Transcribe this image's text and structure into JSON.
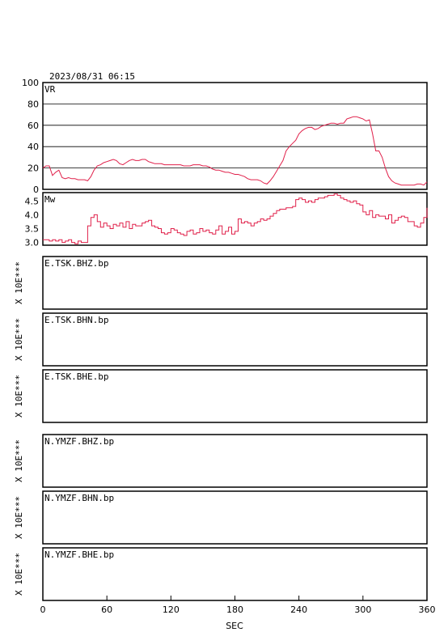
{
  "header": {
    "timestamp": "2023/08/31 06:15"
  },
  "chart_data": [
    {
      "type": "line",
      "panel_label": "VR",
      "ylim": [
        0,
        100
      ],
      "yticks": [
        "0",
        "20",
        "40",
        "60",
        "80",
        "100"
      ],
      "grid": true,
      "color": "#e0204a",
      "x": [
        0,
        3,
        6,
        9,
        12,
        15,
        18,
        21,
        24,
        27,
        30,
        33,
        36,
        39,
        42,
        45,
        48,
        51,
        54,
        57,
        60,
        63,
        66,
        69,
        72,
        75,
        78,
        81,
        84,
        87,
        90,
        93,
        96,
        99,
        102,
        105,
        108,
        111,
        114,
        117,
        120,
        123,
        126,
        129,
        132,
        135,
        138,
        141,
        144,
        147,
        150,
        153,
        156,
        159,
        162,
        165,
        168,
        171,
        174,
        177,
        180,
        183,
        186,
        189,
        192,
        195,
        198,
        201,
        204,
        207,
        210,
        213,
        216,
        219,
        222,
        225,
        228,
        231,
        234,
        237,
        240,
        243,
        246,
        249,
        252,
        255,
        258,
        261,
        264,
        267,
        270,
        273,
        276,
        279,
        282,
        285,
        288,
        291,
        294,
        297,
        300,
        303,
        306,
        309,
        312,
        315,
        318,
        321,
        324,
        327,
        330,
        333,
        336,
        339,
        342,
        345,
        348,
        351,
        354,
        357,
        360
      ],
      "values": [
        20,
        22,
        22,
        13,
        16,
        18,
        11,
        10,
        11,
        10,
        10,
        9,
        9,
        9,
        8,
        12,
        18,
        22,
        23,
        25,
        26,
        27,
        28,
        27,
        24,
        23,
        25,
        27,
        28,
        27,
        27,
        28,
        28,
        26,
        25,
        24,
        24,
        24,
        23,
        23,
        23,
        23,
        23,
        23,
        22,
        22,
        22,
        23,
        23,
        23,
        22,
        22,
        21,
        19,
        18,
        18,
        17,
        16,
        16,
        15,
        14,
        14,
        13,
        12,
        10,
        9,
        9,
        9,
        8,
        6,
        5,
        8,
        12,
        17,
        22,
        27,
        36,
        40,
        43,
        46,
        52,
        55,
        57,
        58,
        58,
        56,
        57,
        59,
        60,
        61,
        62,
        62,
        61,
        62,
        62,
        66,
        67,
        68,
        68,
        67,
        66,
        64,
        65,
        52,
        36,
        36,
        30,
        20,
        12,
        8,
        6,
        5,
        4,
        4,
        4,
        4,
        4,
        5,
        5,
        4,
        7
      ]
    },
    {
      "type": "line",
      "panel_label": "Mw",
      "ylim": [
        2.9,
        4.8
      ],
      "yticks": [
        "3.0",
        "3.5",
        "4.0",
        "4.5"
      ],
      "grid": false,
      "color": "#e0204a",
      "x": [
        0,
        3,
        6,
        9,
        12,
        15,
        18,
        21,
        24,
        27,
        30,
        33,
        36,
        39,
        42,
        45,
        48,
        51,
        54,
        57,
        60,
        63,
        66,
        69,
        72,
        75,
        78,
        81,
        84,
        87,
        90,
        93,
        96,
        99,
        102,
        105,
        108,
        111,
        114,
        117,
        120,
        123,
        126,
        129,
        132,
        135,
        138,
        141,
        144,
        147,
        150,
        153,
        156,
        159,
        162,
        165,
        168,
        171,
        174,
        177,
        180,
        183,
        186,
        189,
        192,
        195,
        198,
        201,
        204,
        207,
        210,
        213,
        216,
        219,
        222,
        225,
        228,
        231,
        234,
        237,
        240,
        243,
        246,
        249,
        252,
        255,
        258,
        261,
        264,
        267,
        270,
        273,
        276,
        279,
        282,
        285,
        288,
        291,
        294,
        297,
        300,
        303,
        306,
        309,
        312,
        315,
        318,
        321,
        324,
        327,
        330,
        333,
        336,
        339,
        342,
        345,
        348,
        351,
        354,
        357,
        360
      ],
      "values": [
        3.1,
        3.1,
        3.05,
        3.1,
        3.05,
        3.1,
        3.0,
        3.05,
        3.1,
        3.0,
        2.95,
        3.05,
        3.0,
        3.0,
        3.6,
        3.9,
        4.0,
        3.75,
        3.55,
        3.7,
        3.6,
        3.5,
        3.65,
        3.6,
        3.7,
        3.55,
        3.75,
        3.5,
        3.65,
        3.6,
        3.6,
        3.7,
        3.75,
        3.8,
        3.6,
        3.55,
        3.5,
        3.35,
        3.3,
        3.35,
        3.5,
        3.45,
        3.35,
        3.3,
        3.25,
        3.4,
        3.45,
        3.3,
        3.35,
        3.5,
        3.4,
        3.45,
        3.35,
        3.3,
        3.45,
        3.6,
        3.3,
        3.4,
        3.55,
        3.3,
        3.4,
        3.85,
        3.7,
        3.75,
        3.7,
        3.6,
        3.7,
        3.75,
        3.85,
        3.8,
        3.85,
        3.95,
        4.05,
        4.15,
        4.2,
        4.2,
        4.25,
        4.25,
        4.3,
        4.55,
        4.6,
        4.55,
        4.45,
        4.5,
        4.45,
        4.55,
        4.6,
        4.6,
        4.65,
        4.7,
        4.7,
        4.75,
        4.7,
        4.6,
        4.55,
        4.5,
        4.45,
        4.5,
        4.4,
        4.35,
        4.1,
        4.0,
        4.15,
        3.9,
        4.0,
        3.95,
        3.95,
        3.85,
        4.0,
        3.7,
        3.8,
        3.9,
        3.95,
        3.9,
        3.75,
        3.75,
        3.6,
        3.55,
        3.7,
        3.9,
        4.25
      ]
    }
  ],
  "traces": [
    {
      "label": "E.TSK.BHZ.bp",
      "yaxis_label": "X 10E***"
    },
    {
      "label": "E.TSK.BHN.bp",
      "yaxis_label": "X 10E***"
    },
    {
      "label": "E.TSK.BHE.bp",
      "yaxis_label": "X 10E***"
    },
    {
      "label": "N.YMZF.BHZ.bp",
      "yaxis_label": "X 10E***"
    },
    {
      "label": "N.YMZF.BHN.bp",
      "yaxis_label": "X 10E***"
    },
    {
      "label": "N.YMZF.BHE.bp",
      "yaxis_label": "X 10E***"
    }
  ],
  "xaxis": {
    "label": "SEC",
    "xlim": [
      0,
      360
    ],
    "ticks": [
      "0",
      "60",
      "120",
      "180",
      "240",
      "300",
      "360"
    ]
  }
}
